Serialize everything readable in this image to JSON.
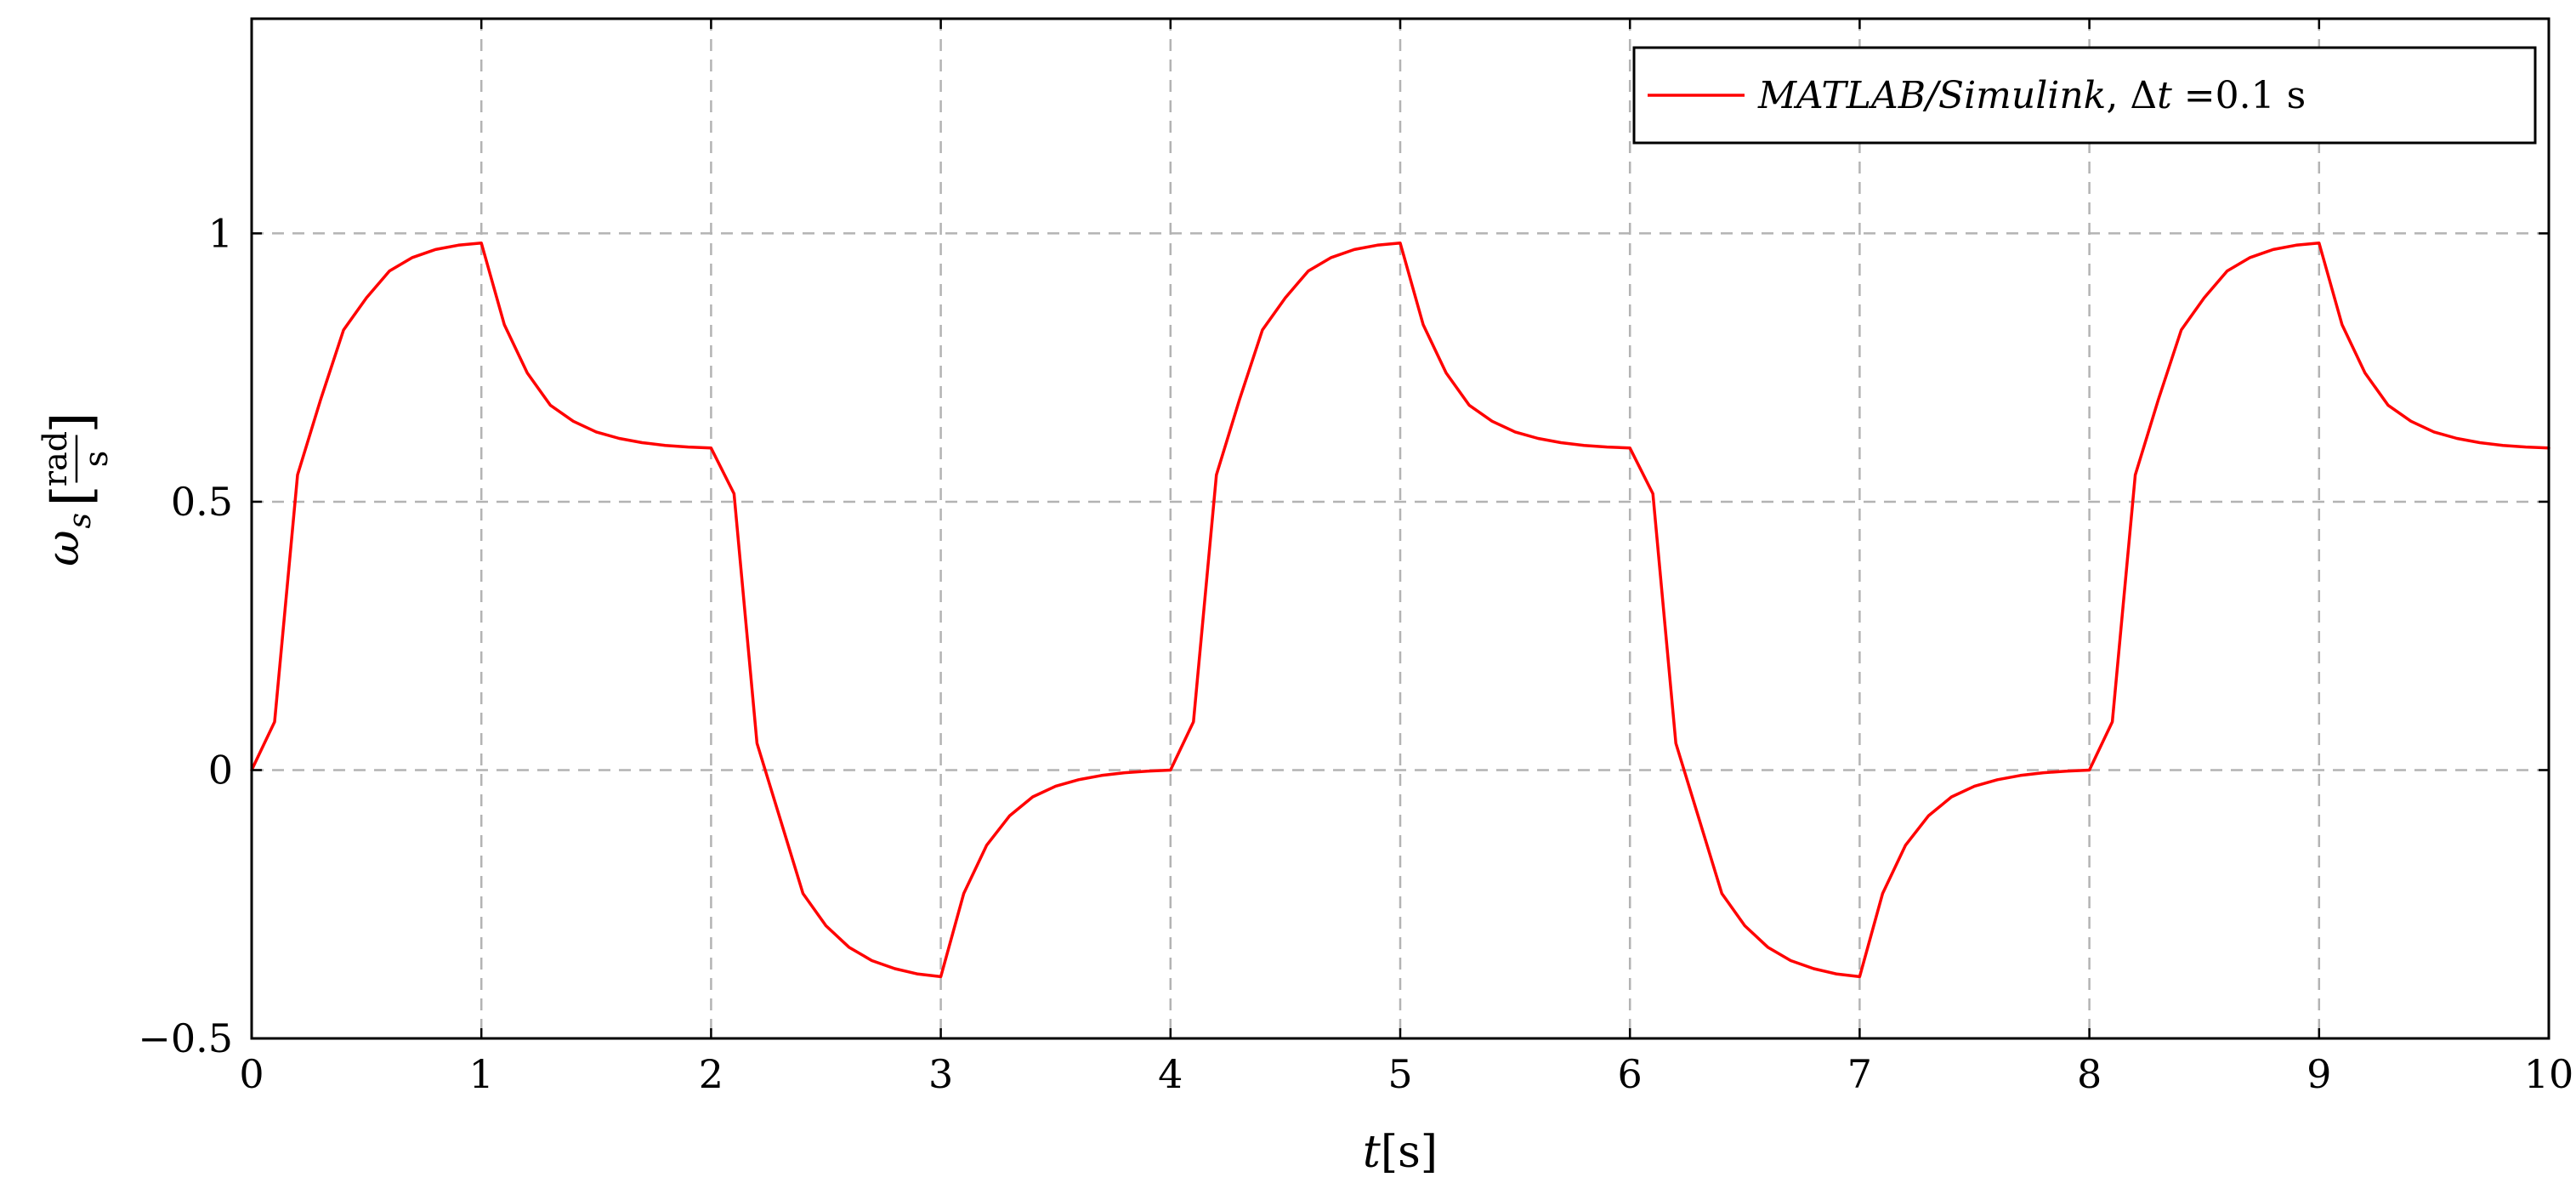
{
  "chart_data": {
    "type": "line",
    "xlabel": {
      "var": "t",
      "unit": "[s]"
    },
    "ylabel": {
      "var": "ω",
      "sub": "s",
      "unit_num": "rad",
      "unit_den": "s"
    },
    "xlim": [
      0,
      10
    ],
    "ylim": [
      -0.5,
      1.4
    ],
    "x_ticks": [
      0,
      1,
      2,
      3,
      4,
      5,
      6,
      7,
      8,
      9,
      10
    ],
    "x_tick_labels": [
      "0",
      "1",
      "2",
      "3",
      "4",
      "5",
      "6",
      "7",
      "8",
      "9",
      "10"
    ],
    "y_ticks": [
      -0.5,
      0,
      0.5,
      1
    ],
    "y_tick_labels": [
      "−0.5",
      "0",
      "0.5",
      "1"
    ],
    "grid": true,
    "legend_position": "top-right",
    "series": [
      {
        "name": "MATLAB/Simulink, Δt =0.1 s",
        "legend": {
          "italic": "MATLAB/Simulink",
          "sep": ", ",
          "delta": "Δ",
          "tvar": "t",
          "rest": " =0.1 s"
        },
        "color": "#ff0000",
        "x": [
          0,
          0.1,
          0.2,
          0.3,
          0.4,
          0.5,
          0.6,
          0.7,
          0.8,
          0.9,
          1.0,
          1.1,
          1.2,
          1.3,
          1.4,
          1.5,
          1.6,
          1.7,
          1.8,
          1.9,
          2.0,
          2.1,
          2.2,
          2.3,
          2.4,
          2.5,
          2.6,
          2.7,
          2.8,
          2.9,
          3.0,
          3.1,
          3.2,
          3.3,
          3.4,
          3.5,
          3.6,
          3.7,
          3.8,
          3.9,
          4.0,
          4.1,
          4.2,
          4.3,
          4.4,
          4.5,
          4.6,
          4.7,
          4.8,
          4.9,
          5.0,
          5.1,
          5.2,
          5.3,
          5.4,
          5.5,
          5.6,
          5.7,
          5.8,
          5.9,
          6.0,
          6.1,
          6.2,
          6.3,
          6.4,
          6.5,
          6.6,
          6.7,
          6.8,
          6.9,
          7.0,
          7.1,
          7.2,
          7.3,
          7.4,
          7.5,
          7.6,
          7.7,
          7.8,
          7.9,
          8.0,
          8.1,
          8.2,
          8.3,
          8.4,
          8.5,
          8.6,
          8.7,
          8.8,
          8.9,
          9.0,
          9.1,
          9.2,
          9.3,
          9.4,
          9.5,
          9.6,
          9.7,
          9.8,
          9.9,
          10.0
        ],
        "y": [
          0,
          0.09,
          0.55,
          0.69,
          0.82,
          0.88,
          0.93,
          0.955,
          0.97,
          0.978,
          0.982,
          0.83,
          0.74,
          0.68,
          0.65,
          0.63,
          0.618,
          0.61,
          0.605,
          0.602,
          0.6,
          0.515,
          0.05,
          -0.09,
          -0.23,
          -0.29,
          -0.33,
          -0.355,
          -0.37,
          -0.38,
          -0.385,
          -0.23,
          -0.14,
          -0.085,
          -0.05,
          -0.03,
          -0.018,
          -0.01,
          -0.005,
          -0.002,
          0,
          0.09,
          0.55,
          0.69,
          0.82,
          0.88,
          0.93,
          0.955,
          0.97,
          0.978,
          0.982,
          0.83,
          0.74,
          0.68,
          0.65,
          0.63,
          0.618,
          0.61,
          0.605,
          0.602,
          0.6,
          0.515,
          0.05,
          -0.09,
          -0.23,
          -0.29,
          -0.33,
          -0.355,
          -0.37,
          -0.38,
          -0.385,
          -0.23,
          -0.14,
          -0.085,
          -0.05,
          -0.03,
          -0.018,
          -0.01,
          -0.005,
          -0.002,
          0,
          0.09,
          0.55,
          0.69,
          0.82,
          0.88,
          0.93,
          0.955,
          0.97,
          0.978,
          0.982,
          0.83,
          0.74,
          0.68,
          0.65,
          0.63,
          0.618,
          0.61,
          0.605,
          0.602,
          0.6
        ]
      }
    ]
  }
}
